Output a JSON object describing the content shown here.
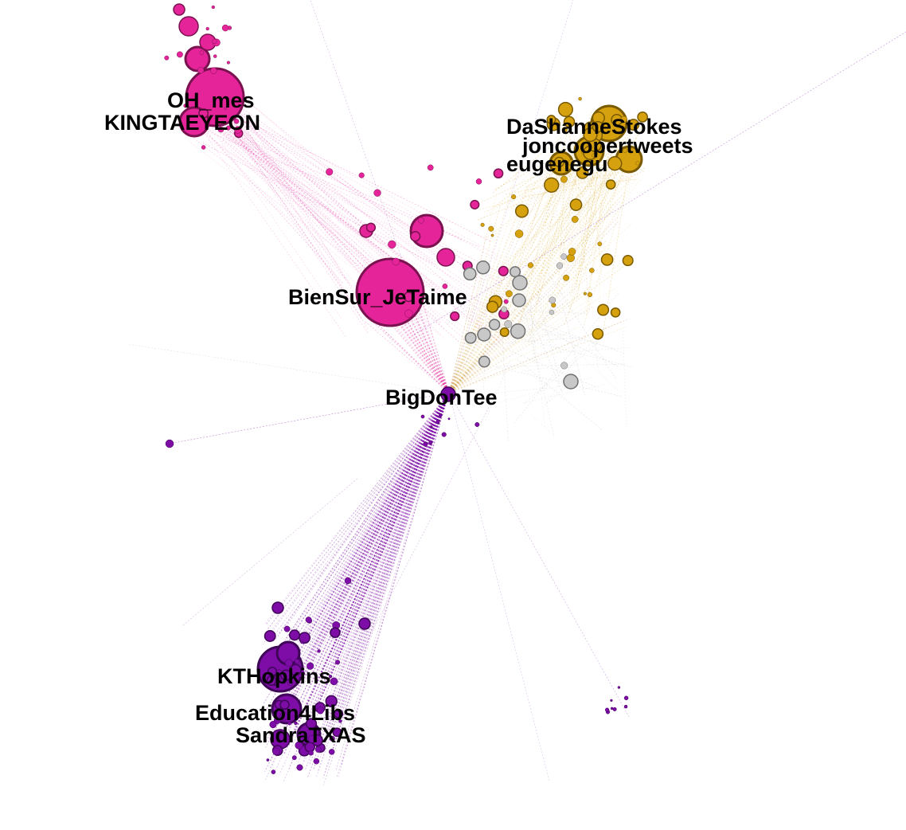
{
  "colors": {
    "pink": "#E6249A",
    "pink_stroke": "#7A1250",
    "gold": "#D6A10F",
    "gold_stroke": "#7A5A00",
    "purple": "#7D0DA6",
    "purple_stroke": "#3F0557",
    "gray": "#C8C8C8",
    "gray_stroke": "#707070",
    "background": "#FFFFFF"
  },
  "clusters": [
    {
      "name": "pink",
      "color_key": "pink"
    },
    {
      "name": "gold",
      "color_key": "gold"
    },
    {
      "name": "purple",
      "color_key": "purple"
    },
    {
      "name": "gray",
      "color_key": "gray"
    }
  ],
  "labels": [
    {
      "id": "OH_mes",
      "text": "OH_mes"
    },
    {
      "id": "KINGTAEYEON",
      "text": "KINGTAEYEON"
    },
    {
      "id": "DaShanneStokes",
      "text": "DaShanneStokes"
    },
    {
      "id": "joncoopertweets",
      "text": "joncoopertweets"
    },
    {
      "id": "eugenegu",
      "text": "eugenegu"
    },
    {
      "id": "BienSur_JeTaime",
      "text": "BienSur_JeTaime"
    },
    {
      "id": "BigDonTee",
      "text": "BigDonTee"
    },
    {
      "id": "KTHopkins",
      "text": "KTHopkins"
    },
    {
      "id": "Education4Libs",
      "text": "Education4Libs"
    },
    {
      "id": "SandraTXAS",
      "text": "SandraTXAS"
    }
  ]
}
